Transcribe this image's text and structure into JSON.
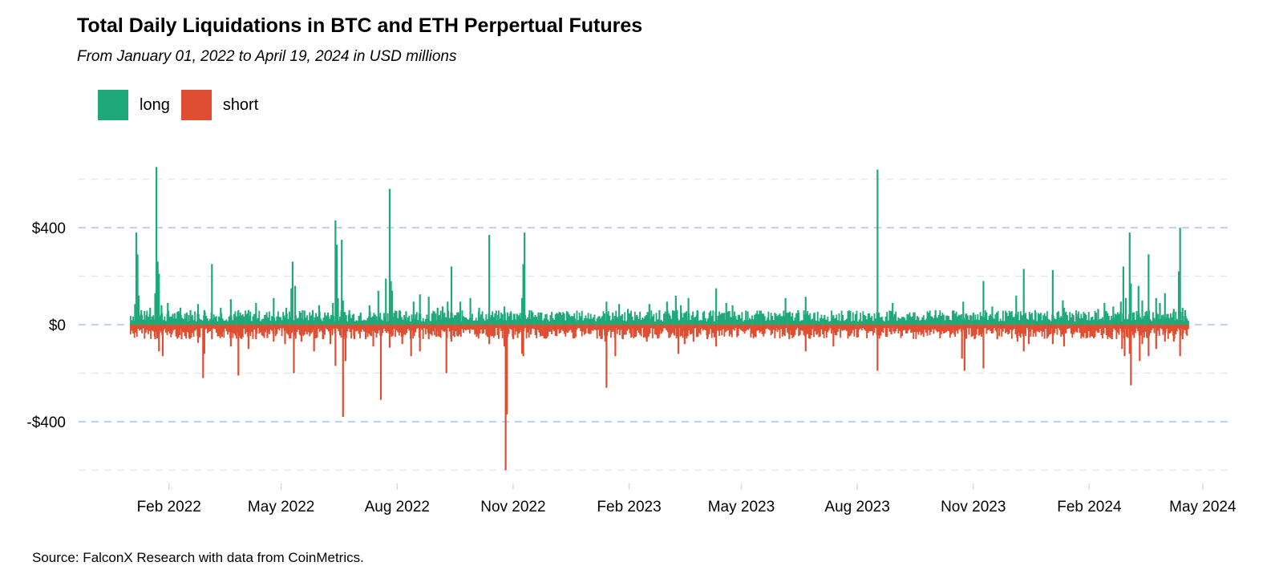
{
  "chart_data": {
    "type": "bar",
    "title": "Total Daily Liquidations in BTC and ETH Perpertual Futures",
    "subtitle": "From January 01, 2022 to April 19, 2024 in USD millions",
    "source": "Source: FalconX Research with data from CoinMetrics.",
    "x_range": [
      "2022-01-01",
      "2024-04-19"
    ],
    "ylim": [
      -620,
      680
    ],
    "y_ticks": [
      {
        "value": 400,
        "label": "$400"
      },
      {
        "value": 0,
        "label": "$0"
      },
      {
        "value": -400,
        "label": "-$400"
      }
    ],
    "x_ticks": [
      {
        "date": "2022-02-01",
        "label": "Feb 2022"
      },
      {
        "date": "2022-05-01",
        "label": "May 2022"
      },
      {
        "date": "2022-08-01",
        "label": "Aug 2022"
      },
      {
        "date": "2022-11-01",
        "label": "Nov 2022"
      },
      {
        "date": "2023-02-01",
        "label": "Feb 2023"
      },
      {
        "date": "2023-05-01",
        "label": "May 2023"
      },
      {
        "date": "2023-08-01",
        "label": "Aug 2023"
      },
      {
        "date": "2023-11-01",
        "label": "Nov 2023"
      },
      {
        "date": "2024-02-01",
        "label": "Feb 2024"
      },
      {
        "date": "2024-05-01",
        "label": "May 2024"
      }
    ],
    "grid": true,
    "legend_position": "top-left",
    "series": [
      {
        "name": "long",
        "color": "#1fa97a",
        "values": [
          [
            "2022-01-05",
            85
          ],
          [
            "2022-01-06",
            380
          ],
          [
            "2022-01-07",
            290
          ],
          [
            "2022-01-08",
            120
          ],
          [
            "2022-01-10",
            60
          ],
          [
            "2022-01-14",
            40
          ],
          [
            "2022-01-17",
            70
          ],
          [
            "2022-01-21",
            130
          ],
          [
            "2022-01-22",
            650
          ],
          [
            "2022-01-23",
            260
          ],
          [
            "2022-01-24",
            210
          ],
          [
            "2022-01-26",
            80
          ],
          [
            "2022-01-31",
            90
          ],
          [
            "2022-02-04",
            45
          ],
          [
            "2022-02-10",
            70
          ],
          [
            "2022-02-15",
            50
          ],
          [
            "2022-02-18",
            60
          ],
          [
            "2022-02-24",
            85
          ],
          [
            "2022-03-01",
            60
          ],
          [
            "2022-03-07",
            250
          ],
          [
            "2022-03-14",
            70
          ],
          [
            "2022-03-22",
            105
          ],
          [
            "2022-03-28",
            60
          ],
          [
            "2022-04-05",
            60
          ],
          [
            "2022-04-11",
            90
          ],
          [
            "2022-04-18",
            40
          ],
          [
            "2022-04-25",
            110
          ],
          [
            "2022-05-05",
            70
          ],
          [
            "2022-05-09",
            150
          ],
          [
            "2022-05-10",
            260
          ],
          [
            "2022-05-12",
            160
          ],
          [
            "2022-05-18",
            60
          ],
          [
            "2022-05-26",
            60
          ],
          [
            "2022-05-31",
            80
          ],
          [
            "2022-06-07",
            50
          ],
          [
            "2022-06-11",
            90
          ],
          [
            "2022-06-13",
            430
          ],
          [
            "2022-06-14",
            330
          ],
          [
            "2022-06-15",
            110
          ],
          [
            "2022-06-18",
            350
          ],
          [
            "2022-06-19",
            100
          ],
          [
            "2022-06-24",
            60
          ],
          [
            "2022-07-03",
            50
          ],
          [
            "2022-07-10",
            80
          ],
          [
            "2022-07-17",
            140
          ],
          [
            "2022-07-23",
            190
          ],
          [
            "2022-07-26",
            560
          ],
          [
            "2022-07-27",
            180
          ],
          [
            "2022-07-28",
            140
          ],
          [
            "2022-08-03",
            60
          ],
          [
            "2022-08-08",
            55
          ],
          [
            "2022-08-14",
            95
          ],
          [
            "2022-08-19",
            125
          ],
          [
            "2022-08-26",
            115
          ],
          [
            "2022-09-02",
            70
          ],
          [
            "2022-09-06",
            75
          ],
          [
            "2022-09-10",
            95
          ],
          [
            "2022-09-13",
            240
          ],
          [
            "2022-09-20",
            95
          ],
          [
            "2022-09-28",
            110
          ],
          [
            "2022-10-05",
            70
          ],
          [
            "2022-10-13",
            370
          ],
          [
            "2022-10-20",
            40
          ],
          [
            "2022-10-25",
            75
          ],
          [
            "2022-10-30",
            55
          ],
          [
            "2022-11-02",
            45
          ],
          [
            "2022-11-04",
            45
          ],
          [
            "2022-11-08",
            110
          ],
          [
            "2022-11-09",
            250
          ],
          [
            "2022-11-10",
            380
          ],
          [
            "2022-11-14",
            60
          ],
          [
            "2022-11-21",
            50
          ],
          [
            "2022-12-03",
            20
          ],
          [
            "2022-12-14",
            35
          ],
          [
            "2022-12-20",
            25
          ],
          [
            "2023-01-03",
            15
          ],
          [
            "2023-01-12",
            40
          ],
          [
            "2023-01-14",
            95
          ],
          [
            "2023-01-19",
            50
          ],
          [
            "2023-01-24",
            85
          ],
          [
            "2023-01-31",
            65
          ],
          [
            "2023-02-07",
            40
          ],
          [
            "2023-02-17",
            85
          ],
          [
            "2023-02-25",
            60
          ],
          [
            "2023-03-03",
            95
          ],
          [
            "2023-03-10",
            120
          ],
          [
            "2023-03-11",
            60
          ],
          [
            "2023-03-14",
            80
          ],
          [
            "2023-03-20",
            110
          ],
          [
            "2023-03-27",
            60
          ],
          [
            "2023-04-06",
            40
          ],
          [
            "2023-04-11",
            150
          ],
          [
            "2023-04-19",
            90
          ],
          [
            "2023-04-24",
            80
          ],
          [
            "2023-05-06",
            55
          ],
          [
            "2023-05-12",
            40
          ],
          [
            "2023-05-22",
            30
          ],
          [
            "2023-06-05",
            110
          ],
          [
            "2023-06-15",
            60
          ],
          [
            "2023-06-21",
            115
          ],
          [
            "2023-06-28",
            50
          ],
          [
            "2023-07-06",
            40
          ],
          [
            "2023-07-13",
            40
          ],
          [
            "2023-07-24",
            25
          ],
          [
            "2023-08-08",
            20
          ],
          [
            "2023-08-17",
            640
          ],
          [
            "2023-08-18",
            50
          ],
          [
            "2023-08-29",
            90
          ],
          [
            "2023-09-12",
            35
          ],
          [
            "2023-09-25",
            25
          ],
          [
            "2023-10-02",
            60
          ],
          [
            "2023-10-16",
            55
          ],
          [
            "2023-10-20",
            35
          ],
          [
            "2023-10-24",
            95
          ],
          [
            "2023-10-26",
            45
          ],
          [
            "2023-11-01",
            50
          ],
          [
            "2023-11-09",
            180
          ],
          [
            "2023-11-16",
            75
          ],
          [
            "2023-11-27",
            50
          ],
          [
            "2023-12-05",
            120
          ],
          [
            "2023-12-11",
            230
          ],
          [
            "2023-12-20",
            60
          ],
          [
            "2024-01-03",
            225
          ],
          [
            "2024-01-11",
            100
          ],
          [
            "2024-01-12",
            70
          ],
          [
            "2024-01-23",
            45
          ],
          [
            "2024-01-29",
            35
          ],
          [
            "2024-02-08",
            65
          ],
          [
            "2024-02-13",
            90
          ],
          [
            "2024-02-20",
            75
          ],
          [
            "2024-02-26",
            95
          ],
          [
            "2024-02-28",
            240
          ],
          [
            "2024-03-01",
            110
          ],
          [
            "2024-03-04",
            380
          ],
          [
            "2024-03-05",
            170
          ],
          [
            "2024-03-11",
            160
          ],
          [
            "2024-03-14",
            100
          ],
          [
            "2024-03-19",
            290
          ],
          [
            "2024-03-25",
            110
          ],
          [
            "2024-03-28",
            90
          ],
          [
            "2024-04-01",
            130
          ],
          [
            "2024-04-08",
            65
          ],
          [
            "2024-04-12",
            220
          ],
          [
            "2024-04-13",
            400
          ],
          [
            "2024-04-15",
            70
          ],
          [
            "2024-04-17",
            60
          ]
        ]
      },
      {
        "name": "short",
        "color": "#e04e32",
        "values": [
          [
            "2022-01-05",
            -30
          ],
          [
            "2022-01-21",
            -60
          ],
          [
            "2022-01-24",
            -110
          ],
          [
            "2022-01-27",
            -130
          ],
          [
            "2022-02-03",
            -40
          ],
          [
            "2022-02-11",
            -60
          ],
          [
            "2022-02-17",
            -55
          ],
          [
            "2022-02-24",
            -75
          ],
          [
            "2022-02-28",
            -220
          ],
          [
            "2022-03-01",
            -120
          ],
          [
            "2022-03-07",
            -60
          ],
          [
            "2022-03-15",
            -50
          ],
          [
            "2022-03-22",
            -90
          ],
          [
            "2022-03-28",
            -210
          ],
          [
            "2022-04-05",
            -100
          ],
          [
            "2022-04-11",
            -60
          ],
          [
            "2022-04-20",
            -55
          ],
          [
            "2022-04-25",
            -70
          ],
          [
            "2022-05-04",
            -80
          ],
          [
            "2022-05-11",
            -200
          ],
          [
            "2022-05-17",
            -70
          ],
          [
            "2022-05-27",
            -110
          ],
          [
            "2022-06-03",
            -60
          ],
          [
            "2022-06-09",
            -80
          ],
          [
            "2022-06-13",
            -170
          ],
          [
            "2022-06-19",
            -380
          ],
          [
            "2022-06-21",
            -150
          ],
          [
            "2022-06-28",
            -60
          ],
          [
            "2022-07-07",
            -60
          ],
          [
            "2022-07-13",
            -90
          ],
          [
            "2022-07-19",
            -310
          ],
          [
            "2022-07-26",
            -95
          ],
          [
            "2022-08-05",
            -80
          ],
          [
            "2022-08-12",
            -130
          ],
          [
            "2022-08-19",
            -110
          ],
          [
            "2022-08-26",
            -60
          ],
          [
            "2022-09-01",
            -50
          ],
          [
            "2022-09-09",
            -200
          ],
          [
            "2022-09-13",
            -70
          ],
          [
            "2022-09-20",
            -40
          ],
          [
            "2022-10-03",
            -50
          ],
          [
            "2022-10-13",
            -80
          ],
          [
            "2022-10-25",
            -90
          ],
          [
            "2022-10-26",
            -600
          ],
          [
            "2022-10-27",
            -370
          ],
          [
            "2022-11-01",
            -60
          ],
          [
            "2022-11-08",
            -120
          ],
          [
            "2022-11-09",
            -130
          ],
          [
            "2022-11-15",
            -40
          ],
          [
            "2022-12-04",
            -20
          ],
          [
            "2022-12-20",
            -15
          ],
          [
            "2023-01-09",
            -40
          ],
          [
            "2023-01-13",
            -70
          ],
          [
            "2023-01-14",
            -260
          ],
          [
            "2023-01-21",
            -130
          ],
          [
            "2023-01-27",
            -60
          ],
          [
            "2023-02-03",
            -50
          ],
          [
            "2023-02-15",
            -70
          ],
          [
            "2023-02-25",
            -40
          ],
          [
            "2023-03-09",
            -45
          ],
          [
            "2023-03-12",
            -120
          ],
          [
            "2023-03-17",
            -80
          ],
          [
            "2023-03-24",
            -70
          ],
          [
            "2023-04-04",
            -60
          ],
          [
            "2023-04-11",
            -90
          ],
          [
            "2023-04-23",
            -40
          ],
          [
            "2023-05-11",
            -50
          ],
          [
            "2023-05-28",
            -25
          ],
          [
            "2023-06-08",
            -60
          ],
          [
            "2023-06-21",
            -110
          ],
          [
            "2023-06-30",
            -40
          ],
          [
            "2023-07-13",
            -90
          ],
          [
            "2023-07-20",
            -25
          ],
          [
            "2023-08-08",
            -15
          ],
          [
            "2023-08-17",
            -190
          ],
          [
            "2023-08-28",
            -40
          ],
          [
            "2023-09-11",
            -15
          ],
          [
            "2023-09-26",
            -15
          ],
          [
            "2023-10-06",
            -20
          ],
          [
            "2023-10-17",
            -40
          ],
          [
            "2023-10-23",
            -140
          ],
          [
            "2023-10-25",
            -190
          ],
          [
            "2023-11-02",
            -60
          ],
          [
            "2023-11-09",
            -180
          ],
          [
            "2023-11-20",
            -60
          ],
          [
            "2023-12-06",
            -70
          ],
          [
            "2023-12-11",
            -110
          ],
          [
            "2023-12-15",
            -80
          ],
          [
            "2024-01-03",
            -80
          ],
          [
            "2024-01-12",
            -90
          ],
          [
            "2024-01-22",
            -30
          ],
          [
            "2024-02-02",
            -20
          ],
          [
            "2024-02-19",
            -60
          ],
          [
            "2024-02-27",
            -100
          ],
          [
            "2024-02-29",
            -130
          ],
          [
            "2024-03-04",
            -120
          ],
          [
            "2024-03-05",
            -250
          ],
          [
            "2024-03-12",
            -150
          ],
          [
            "2024-03-14",
            -80
          ],
          [
            "2024-03-19",
            -130
          ],
          [
            "2024-03-25",
            -100
          ],
          [
            "2024-04-01",
            -70
          ],
          [
            "2024-04-08",
            -70
          ],
          [
            "2024-04-13",
            -130
          ],
          [
            "2024-04-15",
            -60
          ],
          [
            "2024-04-18",
            -40
          ]
        ]
      }
    ]
  }
}
